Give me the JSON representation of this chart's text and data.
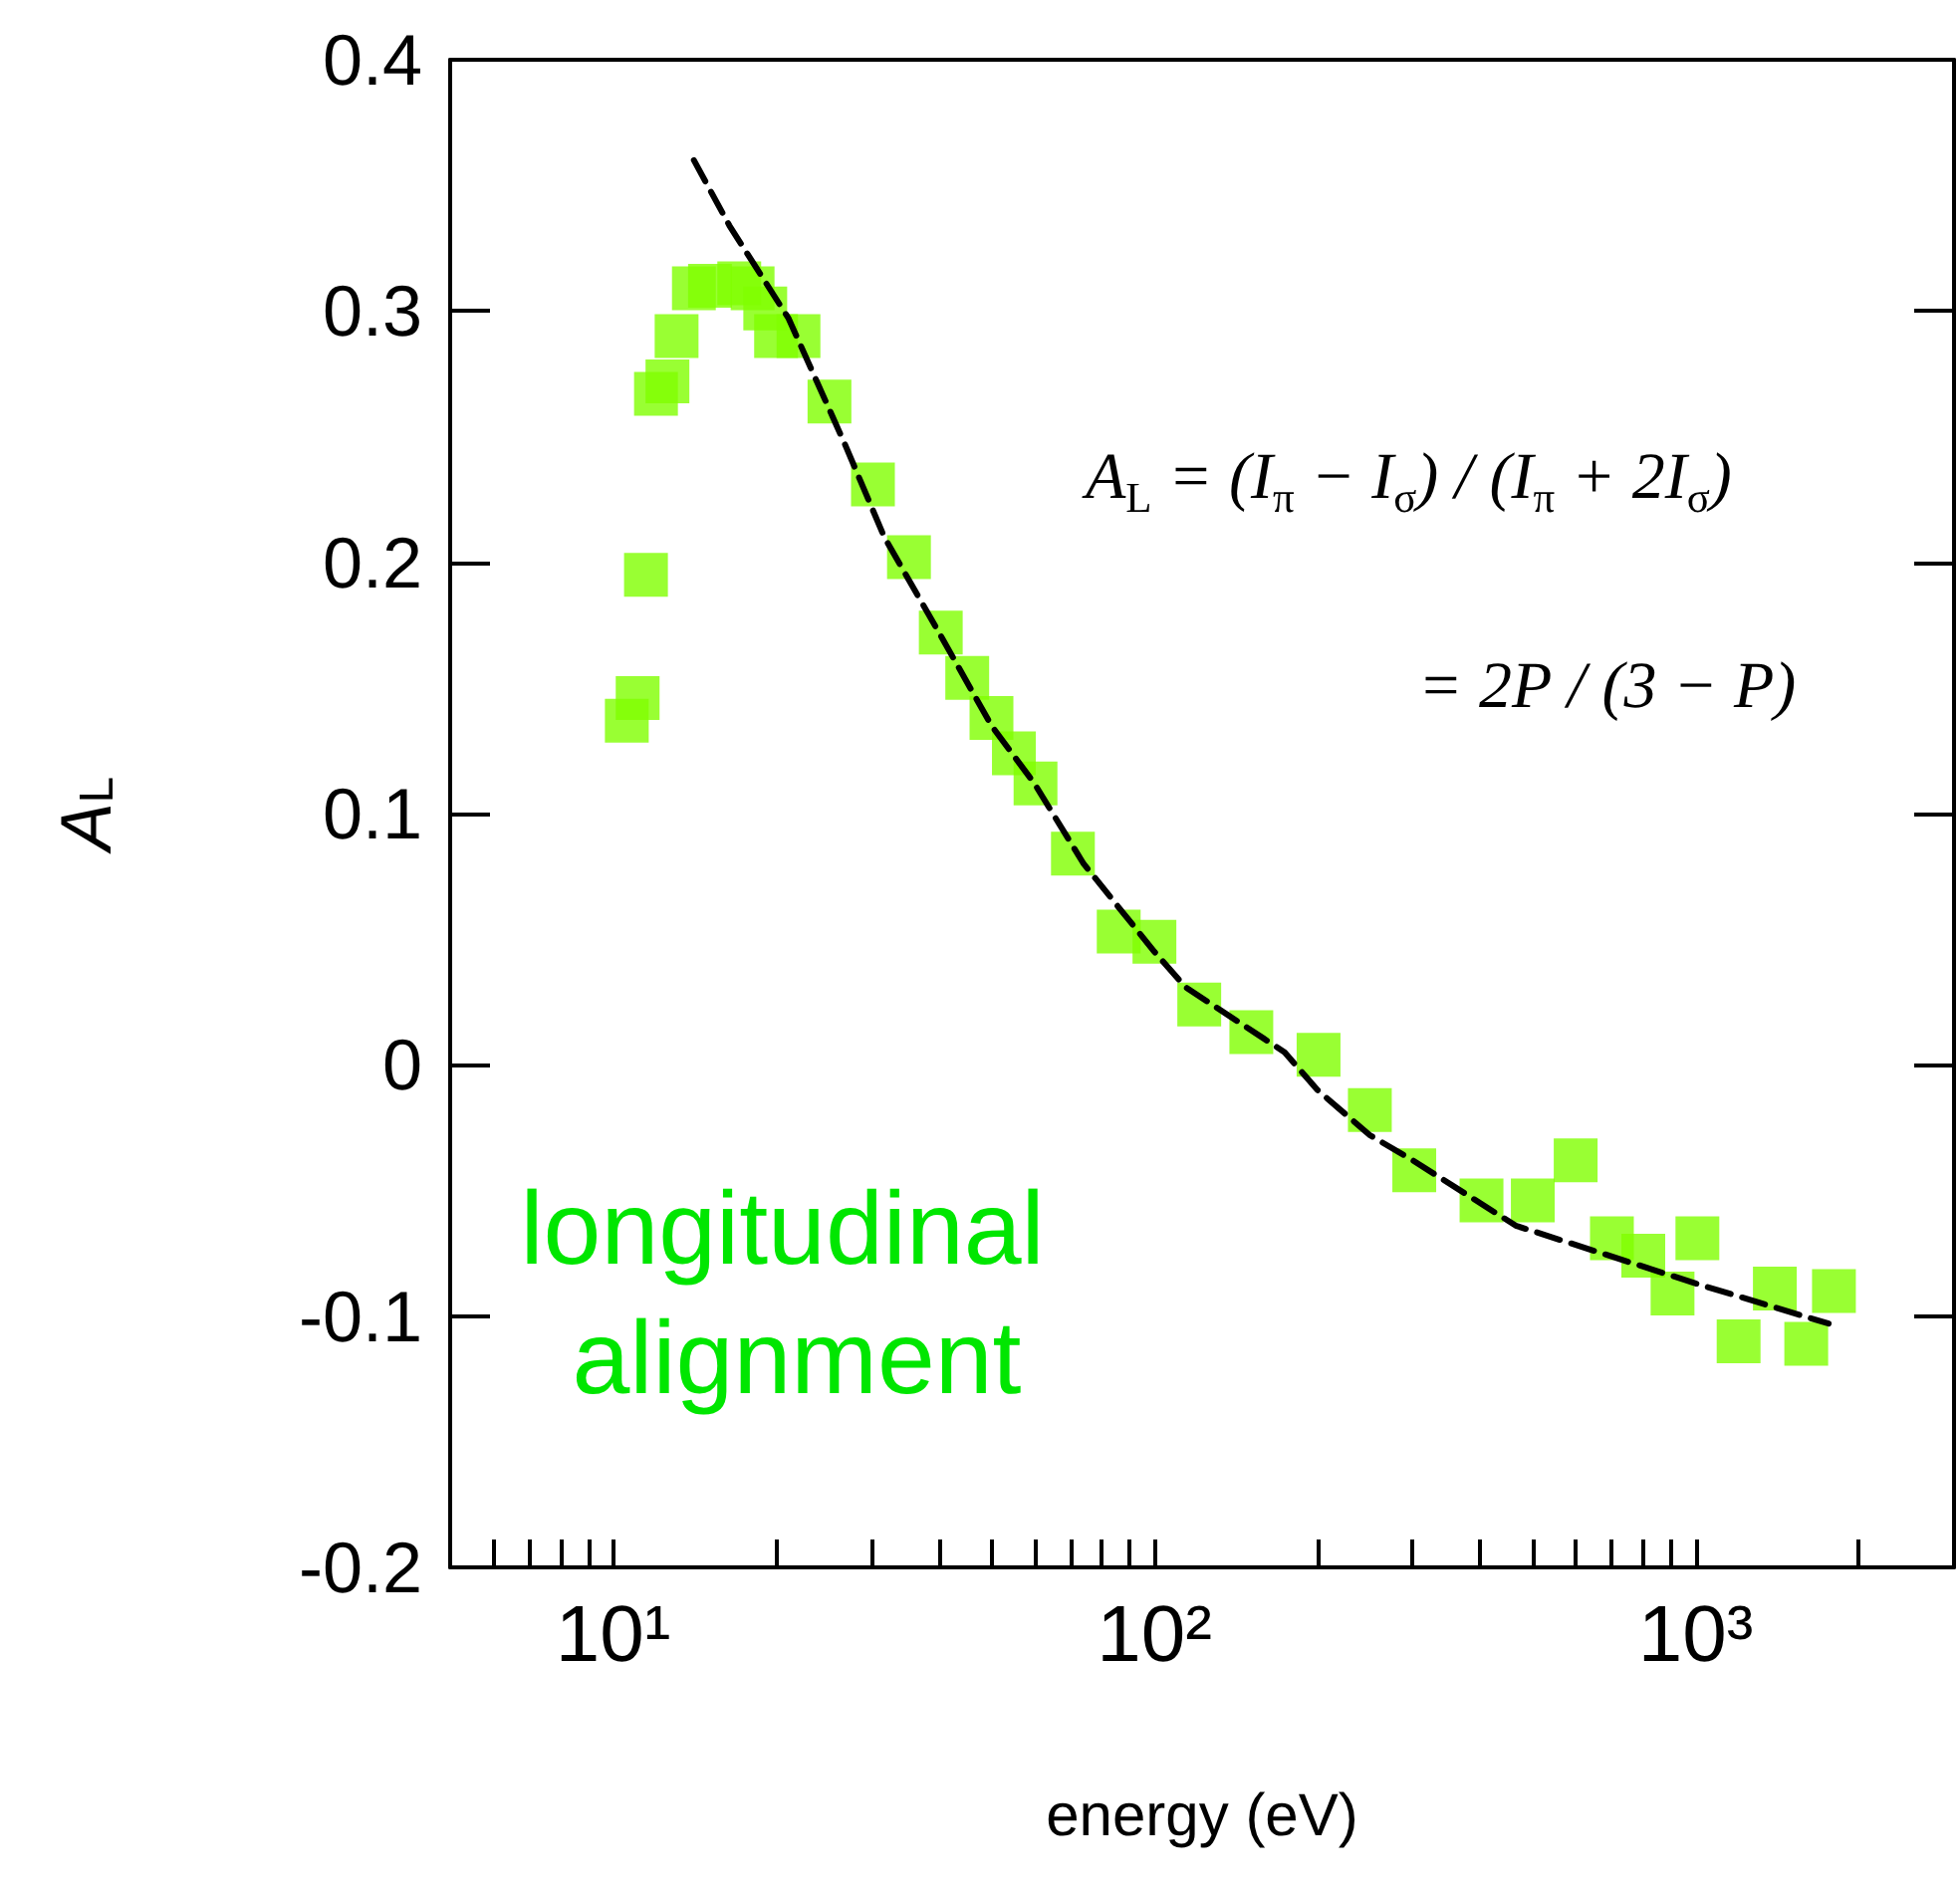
{
  "chart_data": {
    "type": "scatter",
    "xlabel": "energy (eV)",
    "ylabel": "A$_{L}$",
    "log": "x",
    "grid": false,
    "xlim": [
      5,
      3000
    ],
    "ylim": [
      -0.2,
      0.4
    ],
    "xticks": [
      {
        "value": 6,
        "label": null
      },
      {
        "value": 7,
        "label": null
      },
      {
        "value": 8,
        "label": null
      },
      {
        "value": 9,
        "label": null
      },
      {
        "value": 10,
        "label": "10¹"
      },
      {
        "value": 20,
        "label": null
      },
      {
        "value": 30,
        "label": null
      },
      {
        "value": 40,
        "label": null
      },
      {
        "value": 50,
        "label": null
      },
      {
        "value": 60,
        "label": null
      },
      {
        "value": 70,
        "label": null
      },
      {
        "value": 80,
        "label": null
      },
      {
        "value": 90,
        "label": null
      },
      {
        "value": 100,
        "label": "10²"
      },
      {
        "value": 200,
        "label": null
      },
      {
        "value": 300,
        "label": null
      },
      {
        "value": 400,
        "label": null
      },
      {
        "value": 500,
        "label": null
      },
      {
        "value": 600,
        "label": null
      },
      {
        "value": 700,
        "label": null
      },
      {
        "value": 800,
        "label": null
      },
      {
        "value": 900,
        "label": null
      },
      {
        "value": 1000,
        "label": "10³"
      },
      {
        "value": 2000,
        "label": null
      }
    ],
    "yticks": [
      -0.2,
      -0.1,
      0,
      0.1,
      0.2,
      0.3,
      0.4
    ],
    "annotations": [
      "A$_{L}$ = (I$_{π}$ − I$_{σ}$) / (I$_{π}$ + 2I$_{σ}$)",
      "= 2P / (3 − P)",
      "longitudinal alignment"
    ],
    "series": [
      {
        "type": "scatter",
        "color": "#7fff00",
        "marker": "square",
        "x": [
          10.6,
          11.1,
          11.5,
          12.0,
          12.6,
          13.1,
          14.1,
          15.1,
          17.1,
          18.1,
          19.1,
          20,
          22,
          25.1,
          30.2,
          35.2,
          40.3,
          45.1,
          50,
          55,
          60.3,
          70.7,
          85.9,
          100,
          121,
          151,
          201,
          250,
          302,
          402,
          500,
          600,
          700,
          800,
          906,
          1007,
          1200,
          1400,
          1600,
          1800
        ],
        "values": [
          0.137,
          0.146,
          0.195,
          0.267,
          0.272,
          0.29,
          0.309,
          0.31,
          0.311,
          0.309,
          0.301,
          0.29,
          0.29,
          0.264,
          0.231,
          0.202,
          0.172,
          0.154,
          0.138,
          0.124,
          0.112,
          0.084,
          0.053,
          0.049,
          0.024,
          0.013,
          0.004,
          -0.018,
          -0.042,
          -0.054,
          -0.054,
          -0.038,
          -0.069,
          -0.076,
          -0.091,
          -0.069,
          -0.11,
          -0.089,
          -0.111,
          -0.09
        ]
      },
      {
        "type": "line",
        "color": "#000000",
        "marker": "none",
        "line_style": "dashed",
        "x": [
          14.1,
          16.4,
          21.1,
          26.8,
          31.7,
          40,
          50,
          60,
          74,
          100,
          114,
          174,
          200,
          250,
          300,
          465,
          1000,
          1760
        ],
        "values": [
          0.36,
          0.334,
          0.297,
          0.247,
          0.21,
          0.172,
          0.135,
          0.112,
          0.08,
          0.045,
          0.031,
          0.005,
          -0.01,
          -0.028,
          -0.038,
          -0.064,
          -0.087,
          -0.103
        ]
      }
    ]
  }
}
